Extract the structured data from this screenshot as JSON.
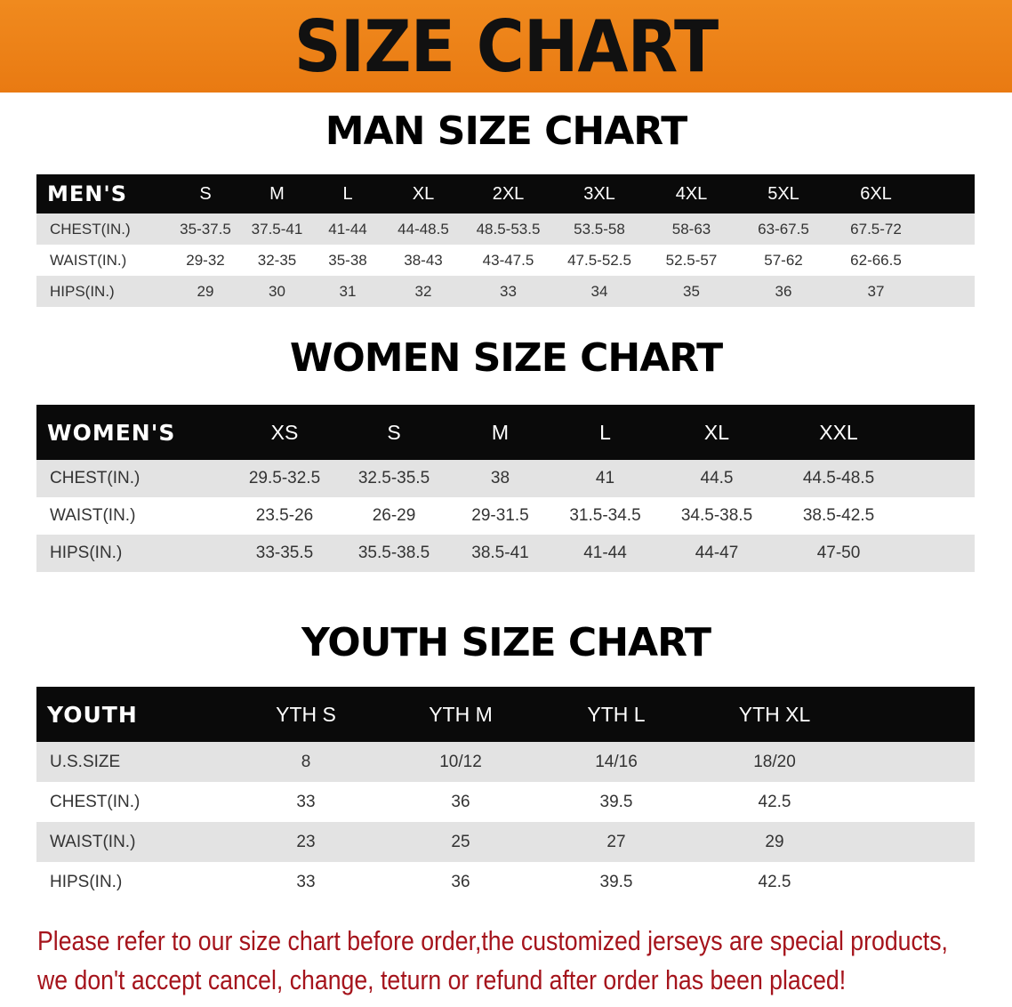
{
  "banner_title": "SIZE CHART",
  "men": {
    "title": "MAN SIZE CHART",
    "header": [
      "MEN'S",
      "S",
      "M",
      "L",
      "XL",
      "2XL",
      "3XL",
      "4XL",
      "5XL",
      "6XL",
      ""
    ],
    "rows": [
      [
        "CHEST(IN.)",
        "35-37.5",
        "37.5-41",
        "41-44",
        "44-48.5",
        "48.5-53.5",
        "53.5-58",
        "58-63",
        "63-67.5",
        "67.5-72",
        ""
      ],
      [
        "WAIST(IN.)",
        "29-32",
        "32-35",
        "35-38",
        "38-43",
        "43-47.5",
        "47.5-52.5",
        "52.5-57",
        "57-62",
        "62-66.5",
        ""
      ],
      [
        "HIPS(IN.)",
        "29",
        "30",
        "31",
        "32",
        "33",
        "34",
        "35",
        "36",
        "37",
        ""
      ]
    ]
  },
  "women": {
    "title": "WOMEN SIZE CHART",
    "header": [
      "WOMEN'S",
      "XS",
      "S",
      "M",
      "L",
      "XL",
      "XXL",
      ""
    ],
    "rows": [
      [
        "CHEST(IN.)",
        "29.5-32.5",
        "32.5-35.5",
        "38",
        "41",
        "44.5",
        "44.5-48.5",
        ""
      ],
      [
        "WAIST(IN.)",
        "23.5-26",
        "26-29",
        "29-31.5",
        "31.5-34.5",
        "34.5-38.5",
        "38.5-42.5",
        ""
      ],
      [
        "HIPS(IN.)",
        "33-35.5",
        "35.5-38.5",
        "38.5-41",
        "41-44",
        "44-47",
        "47-50",
        ""
      ]
    ]
  },
  "youth": {
    "title": "YOUTH SIZE CHART",
    "header": [
      "YOUTH",
      "YTH S",
      "YTH M",
      "YTH L",
      "YTH XL",
      ""
    ],
    "rows": [
      [
        "U.S.SIZE",
        "8",
        "10/12",
        "14/16",
        "18/20",
        ""
      ],
      [
        "CHEST(IN.)",
        "33",
        "36",
        "39.5",
        "42.5",
        ""
      ],
      [
        "WAIST(IN.)",
        "23",
        "25",
        "27",
        "29",
        ""
      ],
      [
        "HIPS(IN.)",
        "33",
        "36",
        "39.5",
        "42.5",
        ""
      ]
    ]
  },
  "note": [
    "Please refer to our size chart before order,the customized jerseys are special products,",
    "we don't accept cancel, change, teturn or refund after order has been placed!"
  ]
}
